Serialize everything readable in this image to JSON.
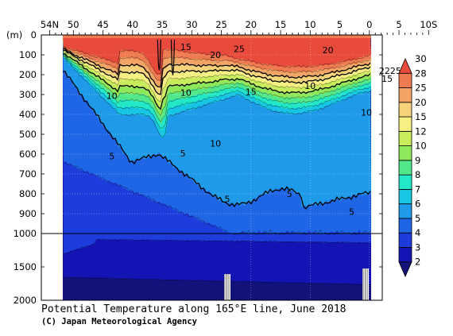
{
  "chart_data": {
    "type": "heatmap",
    "title": "Potential Temperature along 165°E line, June 2018",
    "credit": "(C) Japan Meteorological Agency",
    "ylabel": "(m)",
    "x_tick_labels": [
      "54N",
      "50",
      "45",
      "40",
      "35",
      "30",
      "25",
      "20",
      "15",
      "10",
      "5",
      "0",
      "5",
      "10S"
    ],
    "x_range": [
      54,
      -10
    ],
    "y_tick_labels": [
      "0",
      "100",
      "200",
      "300",
      "400",
      "500",
      "600",
      "700",
      "800",
      "900",
      "1000",
      "1500",
      "2000"
    ],
    "y_range": [
      0,
      2000
    ],
    "y_axis_break": "1000",
    "colorbar_labels": [
      "2",
      "3",
      "4",
      "5",
      "6",
      "7",
      "8",
      "9",
      "10",
      "12",
      "15",
      "20",
      "25",
      "28",
      "30"
    ],
    "colorbar_colors": [
      "#12127a",
      "#1414b4",
      "#1e3cdc",
      "#1f66e6",
      "#1e9ae8",
      "#16c6e2",
      "#22e8c8",
      "#52e88a",
      "#8ee85a",
      "#c8ec5c",
      "#f6f082",
      "#f6d27a",
      "#f2a464",
      "#ee7a50",
      "#e84a3c"
    ],
    "contour_labels": [
      {
        "text": "15",
        "lat": 31.0,
        "depth": 60
      },
      {
        "text": "20",
        "lat": 26.0,
        "depth": 100
      },
      {
        "text": "25",
        "lat": 22.0,
        "depth": 70
      },
      {
        "text": "20",
        "lat": 7.0,
        "depth": 75
      },
      {
        "text": "2225",
        "lat": -3.5,
        "depth": 180
      },
      {
        "text": "15",
        "lat": -3.0,
        "depth": 220
      },
      {
        "text": "10",
        "lat": 43.5,
        "depth": 305
      },
      {
        "text": "10",
        "lat": 31.0,
        "depth": 290
      },
      {
        "text": "15",
        "lat": 20.0,
        "depth": 285
      },
      {
        "text": "10",
        "lat": 10.0,
        "depth": 255
      },
      {
        "text": "10",
        "lat": 0.5,
        "depth": 390
      },
      {
        "text": "10",
        "lat": 26.0,
        "depth": 545
      },
      {
        "text": "5",
        "lat": 43.5,
        "depth": 610
      },
      {
        "text": "5",
        "lat": 31.5,
        "depth": 595
      },
      {
        "text": "5",
        "lat": 24.0,
        "depth": 825
      },
      {
        "text": "5",
        "lat": 13.5,
        "depth": 800
      },
      {
        "text": "5",
        "lat": 3.0,
        "depth": 890
      }
    ]
  }
}
